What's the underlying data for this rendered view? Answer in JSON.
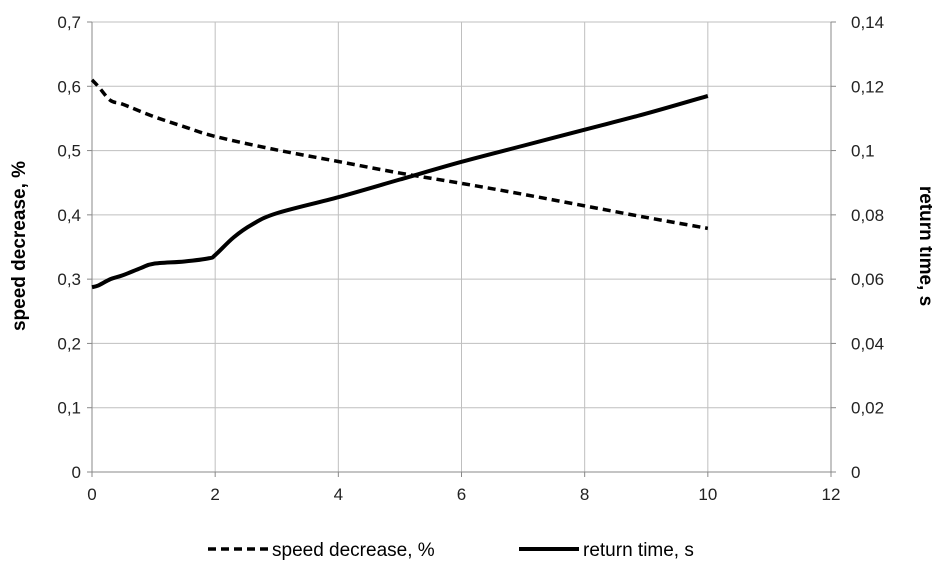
{
  "chart_data": {
    "type": "line",
    "x_ticks": [
      "0",
      "2",
      "4",
      "6",
      "8",
      "10",
      "12"
    ],
    "xlim": [
      0,
      12
    ],
    "ylabel_left": "speed decrease, %",
    "ylabel_right": "return time, s",
    "ylim_left": [
      0,
      0.7
    ],
    "ylim_right": [
      0,
      0.14
    ],
    "y_ticks_left": [
      "0",
      "0,1",
      "0,2",
      "0,3",
      "0,4",
      "0,5",
      "0,6",
      "0,7"
    ],
    "y_ticks_right": [
      "0",
      "0,02",
      "0,04",
      "0,06",
      "0,08",
      "0,1",
      "0,12",
      "0,14"
    ],
    "grid": true,
    "legend_position": "bottom",
    "series": [
      {
        "name": "speed decrease, %",
        "axis": "left",
        "style": "dashed",
        "color": "#000000",
        "x": [
          0,
          0.1,
          0.3,
          0.5,
          1,
          1.5,
          2,
          3,
          4,
          5,
          6,
          7,
          8,
          9,
          10
        ],
        "y": [
          0.61,
          0.6,
          0.578,
          0.572,
          0.553,
          0.537,
          0.522,
          0.501,
          0.483,
          0.465,
          0.449,
          0.432,
          0.414,
          0.396,
          0.379
        ]
      },
      {
        "name": "return time, s",
        "axis": "right",
        "style": "solid",
        "color": "#000000",
        "x": [
          0,
          0.1,
          0.3,
          0.5,
          0.8,
          1,
          1.5,
          1.9,
          2,
          2.3,
          2.6,
          3,
          4,
          5,
          6,
          7,
          8,
          9,
          10
        ],
        "y": [
          0.0575,
          0.058,
          0.06,
          0.0612,
          0.0635,
          0.0648,
          0.0655,
          0.0665,
          0.0675,
          0.073,
          0.077,
          0.0805,
          0.0855,
          0.091,
          0.0965,
          0.1015,
          0.1065,
          0.1115,
          0.117
        ]
      }
    ]
  }
}
